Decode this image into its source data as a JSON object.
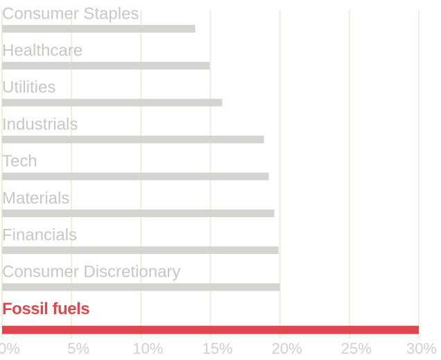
{
  "chart_data": {
    "type": "hbar",
    "categories": [
      "Consumer Staples",
      "Healthcare",
      "Utilities",
      "Industrials",
      "Tech",
      "Materials",
      "Financials",
      "Consumer Discretionary",
      "Fossil fuels"
    ],
    "values": [
      13.9,
      14.95,
      15.85,
      18.85,
      19.2,
      19.6,
      19.9,
      20.0,
      30.0
    ],
    "color": "#d6d4d1",
    "colors": [
      "#d6d4d1",
      "#d6d4d1",
      "#d6d4d1",
      "#d6d4d1",
      "#d6d4d1",
      "#d6d4d1",
      "#d6d4d1",
      "#d6d4d1",
      "#e0474c"
    ],
    "xlim": [
      0,
      30
    ],
    "xticks": [
      {
        "value": 0,
        "label": "0%"
      },
      {
        "value": 5,
        "label": "5%"
      },
      {
        "value": 10,
        "label": "10%"
      },
      {
        "value": 15,
        "label": "15%"
      },
      {
        "value": 20,
        "label": "20%"
      },
      {
        "value": 25,
        "label": "25%"
      },
      {
        "value": 30,
        "label": "30%"
      }
    ],
    "grid": true
  }
}
